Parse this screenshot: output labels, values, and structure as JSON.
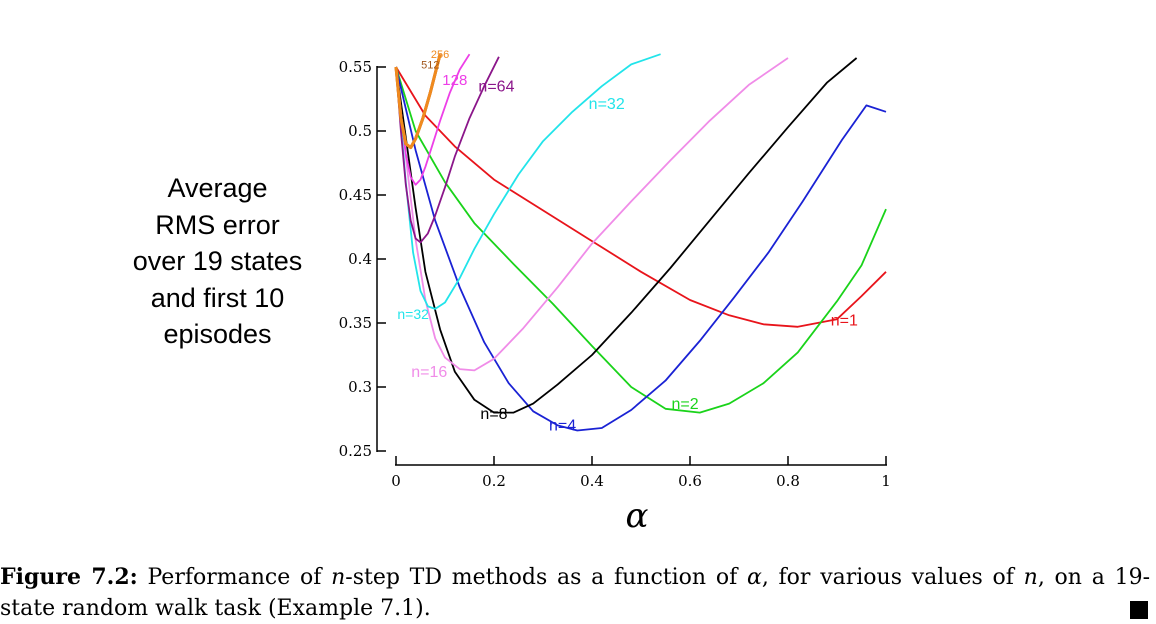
{
  "chart_data": {
    "type": "line",
    "title": "",
    "xlabel": "α",
    "ylabel_lines": [
      "Average",
      "RMS error",
      "over 19 states",
      "and first 10",
      "episodes"
    ],
    "xlim": [
      0,
      1
    ],
    "ylim": [
      0.25,
      0.55
    ],
    "x_ticks": [
      "0",
      "0.2",
      "0.4",
      "0.6",
      "0.8",
      "1"
    ],
    "y_ticks": [
      "0.25",
      "0.3",
      "0.35",
      "0.4",
      "0.45",
      "0.5",
      "0.55"
    ],
    "series": [
      {
        "name": "n=1",
        "label": "n=1",
        "color": "#e8141b",
        "x": [
          0,
          0.06,
          0.12,
          0.2,
          0.3,
          0.4,
          0.5,
          0.6,
          0.68,
          0.75,
          0.82,
          0.9,
          0.95,
          1.0
        ],
        "y": [
          0.55,
          0.512,
          0.488,
          0.462,
          0.438,
          0.414,
          0.39,
          0.368,
          0.356,
          0.349,
          0.347,
          0.353,
          0.371,
          0.39
        ]
      },
      {
        "name": "n=2",
        "label": "n=2",
        "color": "#1ad31a",
        "x": [
          0,
          0.04,
          0.1,
          0.16,
          0.24,
          0.32,
          0.4,
          0.48,
          0.55,
          0.62,
          0.68,
          0.75,
          0.82,
          0.9,
          0.95,
          1.0
        ],
        "y": [
          0.55,
          0.5,
          0.46,
          0.428,
          0.396,
          0.365,
          0.332,
          0.3,
          0.283,
          0.28,
          0.287,
          0.303,
          0.327,
          0.367,
          0.395,
          0.439
        ]
      },
      {
        "name": "n=4",
        "label": "n=4",
        "color": "#1a22d4",
        "x": [
          0,
          0.04,
          0.08,
          0.13,
          0.18,
          0.23,
          0.28,
          0.33,
          0.37,
          0.42,
          0.48,
          0.55,
          0.62,
          0.69,
          0.76,
          0.83,
          0.91,
          0.96,
          1.0
        ],
        "y": [
          0.55,
          0.485,
          0.43,
          0.378,
          0.335,
          0.303,
          0.281,
          0.27,
          0.266,
          0.268,
          0.282,
          0.305,
          0.336,
          0.37,
          0.405,
          0.445,
          0.493,
          0.52,
          0.515
        ]
      },
      {
        "name": "n=8",
        "label": "n=8",
        "color": "#000000",
        "x": [
          0,
          0.02,
          0.04,
          0.06,
          0.09,
          0.12,
          0.16,
          0.2,
          0.24,
          0.28,
          0.33,
          0.4,
          0.48,
          0.56,
          0.64,
          0.72,
          0.8,
          0.88,
          0.94
        ],
        "y": [
          0.55,
          0.495,
          0.44,
          0.39,
          0.345,
          0.312,
          0.29,
          0.28,
          0.28,
          0.287,
          0.302,
          0.325,
          0.358,
          0.393,
          0.43,
          0.467,
          0.503,
          0.538,
          0.557
        ]
      },
      {
        "name": "n=16",
        "label": "n=16",
        "color": "#f08ce8",
        "x": [
          0,
          0.02,
          0.04,
          0.06,
          0.08,
          0.1,
          0.13,
          0.16,
          0.2,
          0.26,
          0.33,
          0.4,
          0.48,
          0.56,
          0.64,
          0.72,
          0.8
        ],
        "y": [
          0.55,
          0.48,
          0.415,
          0.368,
          0.338,
          0.323,
          0.314,
          0.313,
          0.322,
          0.346,
          0.378,
          0.412,
          0.445,
          0.477,
          0.508,
          0.536,
          0.557
        ]
      },
      {
        "name": "n=32",
        "label": "n=32",
        "color": "#22e4ea",
        "x": [
          0,
          0.02,
          0.035,
          0.05,
          0.065,
          0.08,
          0.1,
          0.13,
          0.16,
          0.2,
          0.25,
          0.3,
          0.36,
          0.42,
          0.48,
          0.54
        ],
        "y": [
          0.55,
          0.46,
          0.405,
          0.375,
          0.363,
          0.361,
          0.366,
          0.385,
          0.408,
          0.435,
          0.466,
          0.492,
          0.515,
          0.535,
          0.552,
          0.56
        ]
      },
      {
        "name": "n=64",
        "label": "n=64",
        "color": "#8b168a",
        "x": [
          0,
          0.01,
          0.02,
          0.03,
          0.04,
          0.05,
          0.065,
          0.08,
          0.1,
          0.12,
          0.15,
          0.18,
          0.21
        ],
        "y": [
          0.55,
          0.5,
          0.458,
          0.43,
          0.416,
          0.413,
          0.42,
          0.434,
          0.456,
          0.48,
          0.51,
          0.535,
          0.558
        ]
      },
      {
        "name": "n=128",
        "label": "128",
        "color": "#ed3fe7",
        "x": [
          0,
          0.01,
          0.02,
          0.03,
          0.04,
          0.05,
          0.06,
          0.075,
          0.09,
          0.11,
          0.13,
          0.15
        ],
        "y": [
          0.55,
          0.515,
          0.482,
          0.464,
          0.458,
          0.462,
          0.472,
          0.49,
          0.508,
          0.53,
          0.548,
          0.56
        ]
      },
      {
        "name": "n=256",
        "label": "256",
        "color": "#f08a1e",
        "x": [
          0,
          0.01,
          0.02,
          0.03,
          0.04,
          0.055,
          0.07,
          0.09
        ],
        "y": [
          0.55,
          0.51,
          0.49,
          0.487,
          0.494,
          0.51,
          0.53,
          0.56
        ]
      },
      {
        "name": "n=512",
        "label": "512",
        "color": "#a2561b",
        "x": [
          0,
          0.01,
          0.02,
          0.03,
          0.04,
          0.055,
          0.07,
          0.09
        ],
        "y": [
          0.55,
          0.51,
          0.49,
          0.487,
          0.494,
          0.51,
          0.53,
          0.56
        ]
      }
    ],
    "annotations": [
      "n=1",
      "n=2",
      "n=4",
      "n=8",
      "n=16",
      "n=32",
      "n=32",
      "n=64",
      "128",
      "256",
      "512"
    ]
  },
  "caption": {
    "fig_label": "Figure 7.2:",
    "text_1": " Performance of ",
    "n1": "n",
    "text_2": "-step TD methods as a function of ",
    "alpha": "α",
    "text_3": ", for various values of ",
    "n2": "n",
    "text_4": ", on a 19-state random walk task (Example 7.1)."
  }
}
